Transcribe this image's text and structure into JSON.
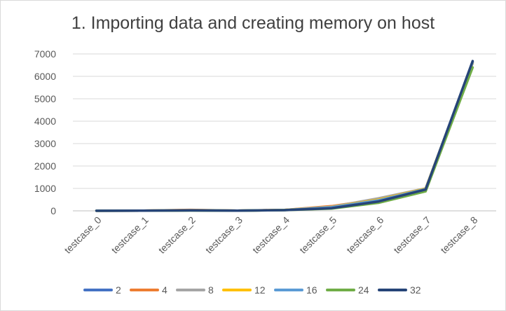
{
  "chart_data": {
    "type": "line",
    "title": "1. Importing data and creating memory on host",
    "xlabel": "",
    "ylabel": "",
    "ylim": [
      0,
      7000
    ],
    "yticks": [
      0,
      1000,
      2000,
      3000,
      4000,
      5000,
      6000,
      7000
    ],
    "grid": true,
    "legend_position": "bottom",
    "categories": [
      "testcase_0",
      "testcase_1",
      "testcase_2",
      "testcase_3",
      "testcase_4",
      "testcase_5",
      "testcase_6",
      "testcase_7",
      "testcase_8"
    ],
    "series": [
      {
        "name": "2",
        "color": "#4472c4",
        "values": [
          2,
          6,
          20,
          8,
          35,
          150,
          480,
          960,
          6650
        ]
      },
      {
        "name": "4",
        "color": "#ed7d31",
        "values": [
          3,
          8,
          45,
          10,
          40,
          210,
          520,
          980,
          6600
        ]
      },
      {
        "name": "8",
        "color": "#a5a5a5",
        "values": [
          2,
          7,
          30,
          9,
          38,
          180,
          560,
          1000,
          6580
        ]
      },
      {
        "name": "12",
        "color": "#ffc000",
        "values": [
          2,
          7,
          25,
          9,
          36,
          170,
          500,
          990,
          6620
        ]
      },
      {
        "name": "16",
        "color": "#5b9bd5",
        "values": [
          2,
          6,
          22,
          8,
          34,
          160,
          470,
          970,
          6640
        ]
      },
      {
        "name": "24",
        "color": "#70ad47",
        "values": [
          2,
          5,
          15,
          7,
          30,
          100,
          360,
          870,
          6400
        ]
      },
      {
        "name": "32",
        "color": "#264478",
        "values": [
          2,
          5,
          18,
          8,
          32,
          120,
          420,
          950,
          6680
        ]
      }
    ]
  }
}
